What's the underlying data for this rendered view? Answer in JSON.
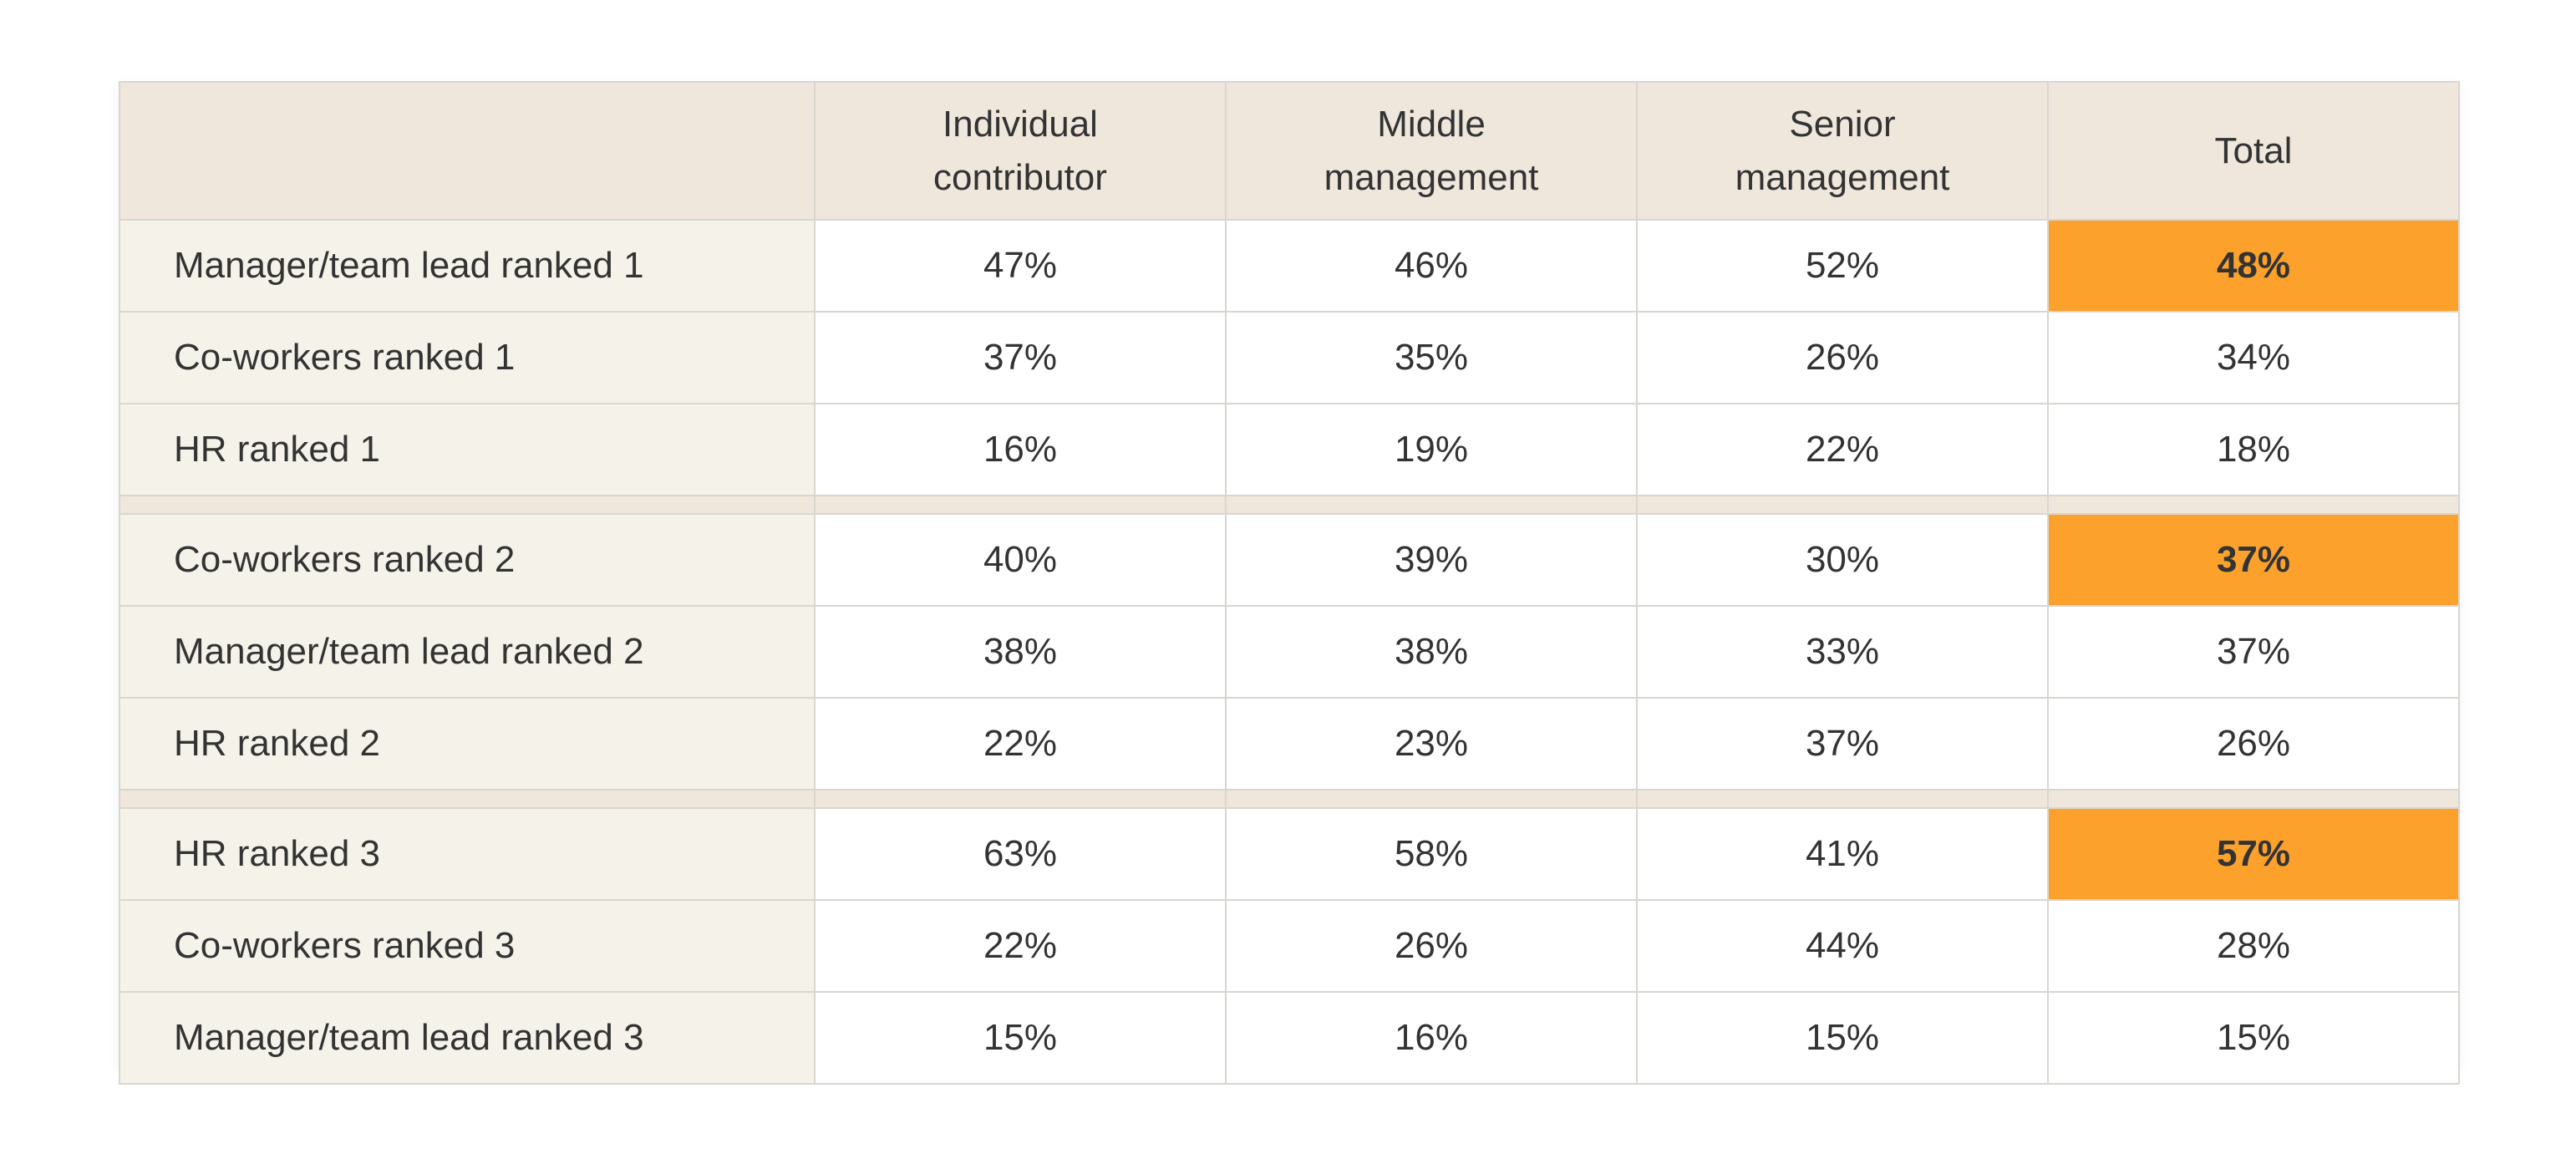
{
  "chart_data": {
    "type": "table",
    "columns": [
      [
        "Individual",
        "contributor"
      ],
      [
        "Middle",
        "management"
      ],
      [
        "Senior",
        "management"
      ],
      [
        "Total"
      ]
    ],
    "highlight_color": "#fca12b",
    "groups": [
      {
        "rows": [
          {
            "label": "Manager/team lead ranked 1",
            "values": [
              "47%",
              "46%",
              "52%",
              "48%"
            ],
            "highlight": [
              3
            ]
          },
          {
            "label": "Co-workers ranked 1",
            "values": [
              "37%",
              "35%",
              "26%",
              "34%"
            ],
            "highlight": []
          },
          {
            "label": "HR ranked 1",
            "values": [
              "16%",
              "19%",
              "22%",
              "18%"
            ],
            "highlight": []
          }
        ]
      },
      {
        "rows": [
          {
            "label": "Co-workers ranked 2",
            "values": [
              "40%",
              "39%",
              "30%",
              "37%"
            ],
            "highlight": [
              3
            ]
          },
          {
            "label": "Manager/team lead ranked 2",
            "values": [
              "38%",
              "38%",
              "33%",
              "37%"
            ],
            "highlight": []
          },
          {
            "label": "HR ranked 2",
            "values": [
              "22%",
              "23%",
              "37%",
              "26%"
            ],
            "highlight": []
          }
        ]
      },
      {
        "rows": [
          {
            "label": "HR ranked 3",
            "values": [
              "63%",
              "58%",
              "41%",
              "57%"
            ],
            "highlight": [
              3
            ]
          },
          {
            "label": "Co-workers ranked 3",
            "values": [
              "22%",
              "26%",
              "44%",
              "28%"
            ],
            "highlight": []
          },
          {
            "label": "Manager/team lead ranked 3",
            "values": [
              "15%",
              "16%",
              "15%",
              "15%"
            ],
            "highlight": []
          }
        ]
      }
    ]
  }
}
